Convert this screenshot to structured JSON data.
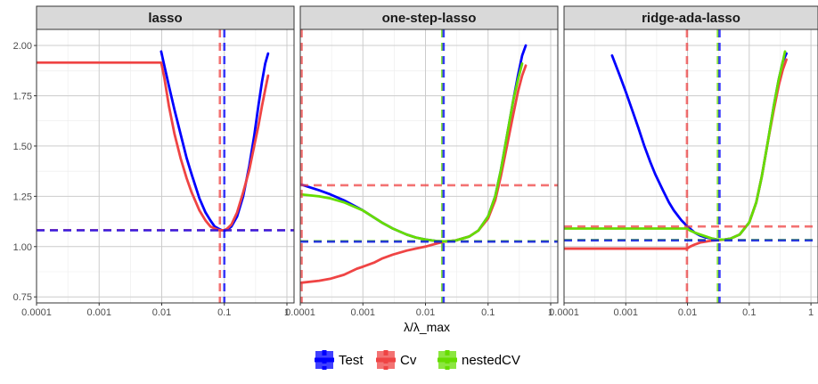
{
  "chart_data": {
    "type": "line",
    "xlabel": "λ/λ_max",
    "ylabel": "",
    "x_scale": "log10",
    "xlim": [
      0.0001,
      1.3
    ],
    "ylim": [
      0.72,
      2.08
    ],
    "x_ticks": [
      0.0001,
      0.001,
      0.01,
      0.1,
      1
    ],
    "x_tick_labels": [
      "0.0001",
      "0.001",
      "0.01",
      "0.1",
      "1"
    ],
    "y_ticks": [
      0.75,
      1.0,
      1.25,
      1.5,
      1.75,
      2.0
    ],
    "y_tick_labels": [
      "0.75",
      "1.00",
      "1.25",
      "1.50",
      "1.75",
      "2.00"
    ],
    "grid": true,
    "legend_position": "bottom",
    "series_colors": {
      "Test": "#0000ff",
      "Cv": "#ef4444",
      "nestedCV": "#66dd00"
    },
    "legend": [
      {
        "key": "Test",
        "label": "Test",
        "color": "#0000ff"
      },
      {
        "key": "Cv",
        "label": "Cv",
        "color": "#ef4444"
      },
      {
        "key": "nestedCV",
        "label": "nestedCV",
        "color": "#66dd00"
      }
    ],
    "panels": [
      {
        "title": "lasso",
        "series": [
          {
            "key": "Test",
            "x": [
              0.0098,
              0.011,
              0.013,
              0.016,
              0.02,
              0.025,
              0.03,
              0.04,
              0.05,
              0.06,
              0.07,
              0.08,
              0.09,
              0.1,
              0.11,
              0.13,
              0.16,
              0.2,
              0.25,
              0.3,
              0.35,
              0.4,
              0.45,
              0.5
            ],
            "y": [
              1.97,
              1.9,
              1.8,
              1.68,
              1.56,
              1.44,
              1.36,
              1.24,
              1.17,
              1.13,
              1.1,
              1.09,
              1.082,
              1.08,
              1.083,
              1.1,
              1.15,
              1.25,
              1.4,
              1.55,
              1.7,
              1.82,
              1.91,
              1.96
            ]
          },
          {
            "key": "Cv",
            "x": [
              0.0001,
              0.0003,
              0.001,
              0.003,
              0.0098,
              0.011,
              0.013,
              0.016,
              0.02,
              0.025,
              0.03,
              0.04,
              0.05,
              0.06,
              0.07,
              0.08,
              0.09,
              0.1,
              0.11,
              0.13,
              0.16,
              0.2,
              0.25,
              0.3,
              0.35,
              0.4,
              0.45,
              0.5
            ],
            "y": [
              1.915,
              1.915,
              1.915,
              1.915,
              1.915,
              1.84,
              1.7,
              1.56,
              1.44,
              1.34,
              1.27,
              1.18,
              1.13,
              1.1,
              1.09,
              1.083,
              1.081,
              1.082,
              1.088,
              1.11,
              1.17,
              1.27,
              1.38,
              1.5,
              1.6,
              1.7,
              1.78,
              1.85
            ]
          }
        ],
        "vlines": [
          {
            "key": "Cv",
            "x": 0.085
          },
          {
            "key": "Test",
            "x": 0.1
          }
        ],
        "hlines": [
          {
            "key": "Cv",
            "y": 1.082
          },
          {
            "key": "Test",
            "y": 1.081
          }
        ]
      },
      {
        "title": "one-step-lasso",
        "series": [
          {
            "key": "Test",
            "x": [
              0.0001,
              0.0002,
              0.0003,
              0.0005,
              0.001,
              0.002,
              0.003,
              0.005,
              0.007,
              0.01,
              0.015,
              0.02,
              0.03,
              0.05,
              0.07,
              0.1,
              0.13,
              0.16,
              0.2,
              0.25,
              0.3,
              0.35,
              0.4
            ],
            "y": [
              1.31,
              1.28,
              1.26,
              1.23,
              1.18,
              1.12,
              1.09,
              1.06,
              1.045,
              1.035,
              1.028,
              1.025,
              1.03,
              1.05,
              1.08,
              1.15,
              1.25,
              1.38,
              1.55,
              1.72,
              1.85,
              1.95,
              2.0
            ]
          },
          {
            "key": "Cv",
            "x": [
              0.0001,
              0.0002,
              0.0003,
              0.0005,
              0.0008,
              0.001,
              0.0015,
              0.002,
              0.003,
              0.005,
              0.007,
              0.01,
              0.015,
              0.02,
              0.03,
              0.05,
              0.07,
              0.1,
              0.13,
              0.16,
              0.2,
              0.25,
              0.3,
              0.35,
              0.4
            ],
            "y": [
              0.82,
              0.83,
              0.84,
              0.86,
              0.89,
              0.9,
              0.92,
              0.94,
              0.96,
              0.98,
              0.99,
              1.0,
              1.015,
              1.025,
              1.03,
              1.05,
              1.08,
              1.14,
              1.23,
              1.35,
              1.5,
              1.65,
              1.77,
              1.85,
              1.9
            ]
          },
          {
            "key": "nestedCV",
            "x": [
              0.0001,
              0.0002,
              0.0003,
              0.0005,
              0.001,
              0.002,
              0.003,
              0.005,
              0.007,
              0.01,
              0.015,
              0.02,
              0.03,
              0.05,
              0.07,
              0.1,
              0.13,
              0.16,
              0.2,
              0.25,
              0.3,
              0.35
            ],
            "y": [
              1.26,
              1.25,
              1.24,
              1.22,
              1.18,
              1.12,
              1.09,
              1.06,
              1.045,
              1.035,
              1.028,
              1.026,
              1.03,
              1.05,
              1.08,
              1.15,
              1.25,
              1.38,
              1.55,
              1.72,
              1.83,
              1.91
            ]
          }
        ],
        "vlines": [
          {
            "key": "Cv",
            "x": 0.000105
          },
          {
            "key": "nestedCV",
            "x": 0.0185
          },
          {
            "key": "Test",
            "x": 0.0195
          }
        ],
        "hlines": [
          {
            "key": "Cv",
            "y": 1.305
          },
          {
            "key": "nestedCV",
            "y": 1.027
          },
          {
            "key": "Test",
            "y": 1.025
          }
        ]
      },
      {
        "title": "ridge-ada-lasso",
        "series": [
          {
            "key": "Test",
            "x": [
              0.0006,
              0.0008,
              0.001,
              0.0013,
              0.0016,
              0.002,
              0.0025,
              0.003,
              0.004,
              0.005,
              0.006,
              0.008,
              0.01,
              0.013,
              0.016,
              0.02,
              0.025,
              0.03,
              0.04,
              0.05,
              0.07,
              0.1,
              0.13,
              0.16,
              0.2,
              0.25,
              0.3,
              0.35,
              0.4
            ],
            "y": [
              1.95,
              1.85,
              1.77,
              1.67,
              1.59,
              1.5,
              1.42,
              1.36,
              1.28,
              1.22,
              1.18,
              1.13,
              1.1,
              1.07,
              1.055,
              1.045,
              1.04,
              1.035,
              1.035,
              1.04,
              1.06,
              1.12,
              1.22,
              1.35,
              1.52,
              1.7,
              1.83,
              1.92,
              1.96
            ]
          },
          {
            "key": "Cv",
            "x": [
              0.0001,
              0.0003,
              0.001,
              0.003,
              0.006,
              0.0098,
              0.011,
              0.013,
              0.016,
              0.02,
              0.025,
              0.03,
              0.04,
              0.05,
              0.07,
              0.1,
              0.13,
              0.16,
              0.2,
              0.25,
              0.3,
              0.35,
              0.4
            ],
            "y": [
              0.99,
              0.99,
              0.99,
              0.99,
              0.99,
              0.99,
              1.0,
              1.01,
              1.02,
              1.025,
              1.03,
              1.032,
              1.035,
              1.04,
              1.06,
              1.12,
              1.22,
              1.35,
              1.52,
              1.68,
              1.8,
              1.88,
              1.93
            ]
          },
          {
            "key": "nestedCV",
            "x": [
              0.0001,
              0.0003,
              0.001,
              0.003,
              0.006,
              0.0098,
              0.011,
              0.013,
              0.016,
              0.02,
              0.025,
              0.03,
              0.04,
              0.05,
              0.07,
              0.1,
              0.13,
              0.16,
              0.2,
              0.25,
              0.3,
              0.35,
              0.38
            ],
            "y": [
              1.09,
              1.09,
              1.09,
              1.09,
              1.09,
              1.09,
              1.08,
              1.07,
              1.06,
              1.05,
              1.04,
              1.035,
              1.035,
              1.04,
              1.06,
              1.12,
              1.22,
              1.35,
              1.52,
              1.7,
              1.83,
              1.92,
              1.97
            ]
          }
        ],
        "vlines": [
          {
            "key": "Cv",
            "x": 0.0098
          },
          {
            "key": "nestedCV",
            "x": 0.031
          },
          {
            "key": "Test",
            "x": 0.033
          }
        ],
        "hlines": [
          {
            "key": "Cv",
            "y": 1.1
          },
          {
            "key": "nestedCV",
            "y": 1.033
          },
          {
            "key": "Test",
            "y": 1.031
          }
        ]
      }
    ]
  }
}
